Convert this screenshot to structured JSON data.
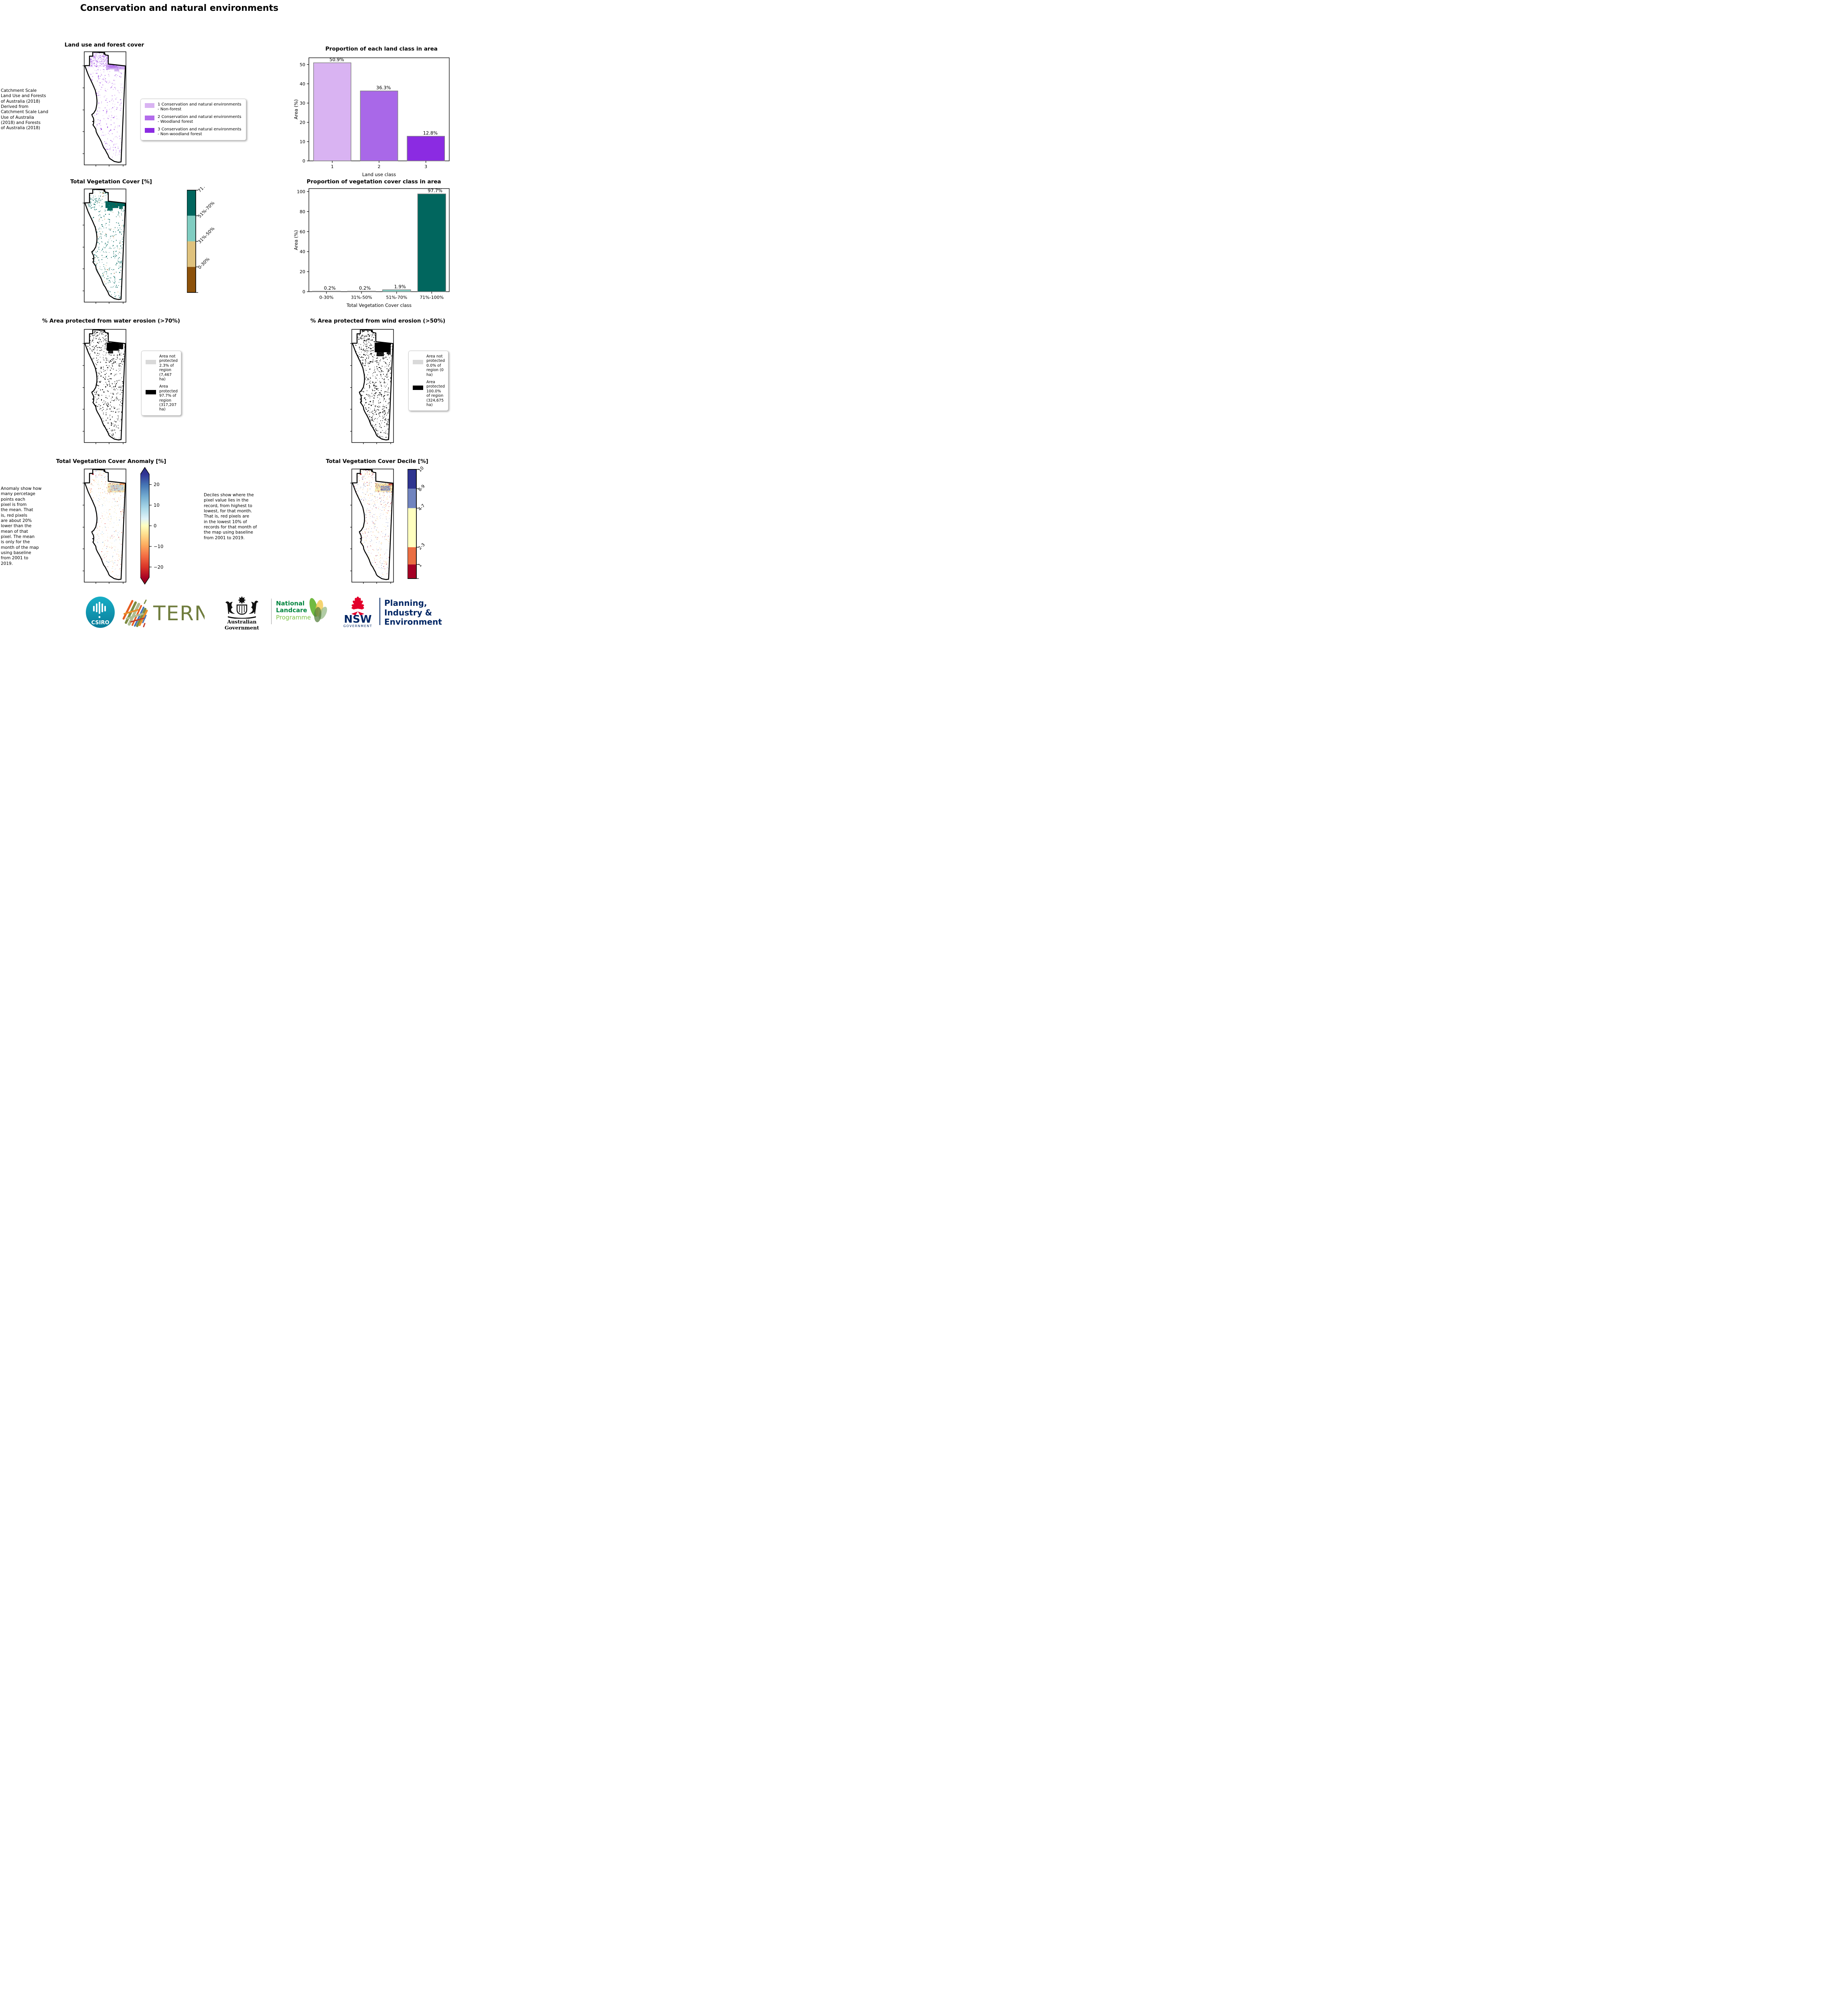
{
  "page": {
    "title": "Conservation and natural environments"
  },
  "panels": {
    "land_use": {
      "title": "Land use and forest cover",
      "note": " Catchment Scale\nLand Use and Forests\nof Australia (2018)\nDerived from\nCatchment Scale Land\nUse of Australia\n(2018) and Forests\nof Australia (2018)",
      "legend": [
        {
          "color": "#d9b3f2",
          "label": "1 Conservation and natural environments - Non-forest"
        },
        {
          "color": "#b26ceb",
          "label": "2 Conservation and natural environments - Woodland forest"
        },
        {
          "color": "#8b2be2",
          "label": "3 Conservation and natural environments - Non-woodland forest"
        }
      ]
    },
    "veg_cover": {
      "title": "Total Vegetation Cover [%]",
      "colorbar_labels": [
        "71%-100%",
        "51%-70%",
        "31%-50%",
        "0-30%"
      ],
      "colorbar_colors": [
        "#01665e",
        "#80cdc1",
        "#dfc27d",
        "#8c510a"
      ]
    },
    "water_erosion": {
      "title": "% Area protected from water erosion (>70%)",
      "legend": [
        {
          "color": "#d9d9d9",
          "label": "Area not protected 2.3% of region (7,467 ha)"
        },
        {
          "color": "#000000",
          "label": "Area protected 97.7% of region (317,207 ha)"
        }
      ]
    },
    "wind_erosion": {
      "title": "% Area protected from wind erosion (>50%)",
      "legend": [
        {
          "color": "#d9d9d9",
          "label": "Area not protected 0.0% of region (0 ha)"
        },
        {
          "color": "#000000",
          "label": "Area protected 100.0% of region (324,675 ha)"
        }
      ]
    },
    "anomaly": {
      "title": "Total Vegetation Cover Anomaly [%]",
      "note": "Anomaly show how\nmany percetage\npoints each\npixel is from\nthe mean. That\nis, red pixels\nare about 20%\nlower than the\nmean of that\npixel. The mean\nis only for the\nmonth of the map\nusing baseline\nfrom 2001 to\n2019.",
      "colorbar_ticks": [
        "20",
        "10",
        "0",
        "−10",
        "−20"
      ]
    },
    "decile": {
      "title": "Total Vegetation Cover Decile [%]",
      "note": "Deciles show where the\npixel value lies in the\nrecord, from highest to\nlowest, for that month.\nThat is, red pixels are\nin the lowest 10% of\nrecords for that month of\nthe map using baseline\nfrom 2001 to 2019.",
      "colorbar_labels": [
        "10",
        "8-9",
        "4-7",
        "2-3",
        "1"
      ],
      "colorbar_colors": [
        "#2f3590",
        "#7184bf",
        "#ffffbf",
        "#ea6e43",
        "#a50026"
      ]
    }
  },
  "chart_data": [
    {
      "type": "bar",
      "title": "Proportion of each land class in area",
      "xlabel": "Land use class",
      "ylabel": "Area (%)",
      "categories": [
        "1",
        "2",
        "3"
      ],
      "values": [
        50.9,
        36.3,
        12.8
      ],
      "bar_labels": [
        "50.9%",
        "36.3%",
        "12.8%"
      ],
      "colors": [
        "#d9b3f2",
        "#a968e8",
        "#8b2be2"
      ],
      "yticks": [
        0,
        10,
        20,
        30,
        40,
        50
      ],
      "ylim": [
        0,
        53.5
      ],
      "grid": false,
      "legend_position": "none"
    },
    {
      "type": "bar",
      "title": "Proportion of vegetation cover class in area",
      "xlabel": "Total Vegetation Cover class",
      "ylabel": "Area (%)",
      "categories": [
        "0-30%",
        "31%-50%",
        "51%-70%",
        "71%-100%"
      ],
      "values": [
        0.2,
        0.2,
        1.9,
        97.7
      ],
      "bar_labels": [
        "0.2%",
        "0.2%",
        "1.9%",
        "97.7%"
      ],
      "colors": [
        "#8c510a",
        "#dfc27d",
        "#80cdc1",
        "#01665e"
      ],
      "yticks": [
        0,
        20,
        40,
        60,
        80,
        100
      ],
      "ylim": [
        0,
        103
      ],
      "grid": false,
      "legend_position": "none"
    }
  ],
  "maps": {
    "land_use": {
      "palette": [
        [
          "#d9b3f2",
          0.5
        ],
        [
          "#b26ceb",
          0.3
        ],
        [
          "#8b2be2",
          0.2
        ]
      ],
      "count": 650,
      "top_bias": 1.35,
      "size": 1.6
    },
    "veg_cover": {
      "palette": [
        [
          "#01665e",
          0.8
        ],
        [
          "#2f8f85",
          0.1
        ],
        [
          "#dfc27d",
          0.06
        ],
        [
          "#8c510a",
          0.04
        ]
      ],
      "count": 780,
      "top_bias": 1.15,
      "size": 1.5
    },
    "water": {
      "palette": [
        [
          "#000000",
          1.0
        ]
      ],
      "count": 900,
      "top_bias": 1.25,
      "size": 1.6
    },
    "wind": {
      "palette": [
        [
          "#000000",
          1.0
        ]
      ],
      "count": 1050,
      "top_bias": 1.2,
      "size": 1.6
    },
    "anomaly": {
      "palette": [
        [
          "#f8edb6",
          0.45
        ],
        [
          "#fdae61",
          0.2
        ],
        [
          "#d73027",
          0.1
        ],
        [
          "#a50026",
          0.05
        ],
        [
          "#9ec7e4",
          0.15
        ],
        [
          "#4575b4",
          0.05
        ]
      ],
      "count": 950,
      "top_bias": 1.3,
      "size": 1.1
    },
    "decile": {
      "palette": [
        [
          "#fdae61",
          0.28
        ],
        [
          "#a50026",
          0.14
        ],
        [
          "#7184bf",
          0.27
        ],
        [
          "#fff6b0",
          0.31
        ]
      ],
      "count": 1050,
      "top_bias": 1.25,
      "size": 1.1
    }
  },
  "logos": {
    "csiro": "CSIRO",
    "tern": "TERN",
    "aus_gov": "Australian Government",
    "landcare": [
      "National",
      "Landcare",
      "Programme"
    ],
    "nsw": "NSW",
    "nsw_sub": "GOVERNMENT",
    "planning": [
      "Planning,",
      "Industry &",
      "Environment"
    ]
  }
}
